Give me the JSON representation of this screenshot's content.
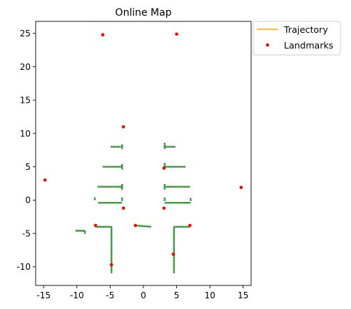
{
  "chart_data": {
    "type": "scatter",
    "title": "Online Map",
    "xlabel": "",
    "ylabel": "",
    "xlim": [
      -16.2,
      16.2
    ],
    "ylim": [
      -12.8,
      26.8
    ],
    "xticks": [
      -15,
      -10,
      -5,
      0,
      5,
      10,
      15
    ],
    "yticks": [
      -10,
      -5,
      0,
      5,
      10,
      15,
      20,
      25
    ],
    "grid": false,
    "legend": {
      "placement": "outside-top-right",
      "entries": [
        "Trajectory",
        "Landmarks"
      ]
    },
    "colors": {
      "trajectory": "#ffa500",
      "landmarks": "#ff0000",
      "map": "#008000"
    },
    "series": [
      {
        "name": "Trajectory",
        "kind": "line",
        "x": [],
        "y": []
      },
      {
        "name": "Landmarks",
        "kind": "scatter",
        "x": [
          -6.1,
          5.0,
          -14.8,
          14.7,
          -3.0,
          -7.2,
          -3.0,
          -1.2,
          -4.8,
          3.1,
          3.1,
          7.0,
          4.5
        ],
        "y": [
          24.8,
          24.9,
          3.0,
          1.9,
          11.0,
          -3.8,
          -1.2,
          -3.8,
          -9.7,
          4.8,
          -1.2,
          -3.8,
          -8.1
        ]
      },
      {
        "name": "",
        "kind": "map-segments",
        "segments": [
          [
            -4.9,
            8.0,
            -3.4,
            8.0
          ],
          [
            -3.2,
            7.7,
            -3.2,
            8.4
          ],
          [
            -6.1,
            5.0,
            -3.2,
            5.0
          ],
          [
            -3.2,
            4.6,
            -3.2,
            5.4
          ],
          [
            -6.9,
            2.0,
            -3.2,
            2.0
          ],
          [
            -3.2,
            1.6,
            -3.2,
            2.4
          ],
          [
            -7.3,
            0.0,
            -7.3,
            0.4
          ],
          [
            -6.8,
            -0.4,
            -3.2,
            -0.4
          ],
          [
            -3.2,
            -0.1,
            -3.2,
            0.4
          ],
          [
            -7.2,
            -4.0,
            -4.8,
            -4.0
          ],
          [
            -4.8,
            -4.0,
            -4.8,
            -11.0
          ],
          [
            -10.2,
            -4.6,
            -8.8,
            -4.6
          ],
          [
            -8.8,
            -4.6,
            -8.8,
            -5.1
          ],
          [
            -1.3,
            -3.8,
            1.2,
            -4.0
          ],
          [
            3.3,
            8.0,
            4.8,
            8.0
          ],
          [
            3.2,
            7.7,
            3.2,
            8.6
          ],
          [
            3.2,
            5.0,
            6.3,
            5.0
          ],
          [
            3.2,
            4.6,
            3.2,
            5.6
          ],
          [
            3.2,
            2.0,
            7.0,
            2.0
          ],
          [
            3.2,
            1.6,
            3.2,
            2.4
          ],
          [
            3.2,
            -0.4,
            7.1,
            -0.4
          ],
          [
            7.1,
            -0.1,
            7.1,
            0.3
          ],
          [
            3.2,
            -0.1,
            3.2,
            0.4
          ],
          [
            4.6,
            -4.0,
            7.0,
            -4.0
          ],
          [
            4.6,
            -4.0,
            4.6,
            -11.0
          ]
        ]
      }
    ]
  }
}
